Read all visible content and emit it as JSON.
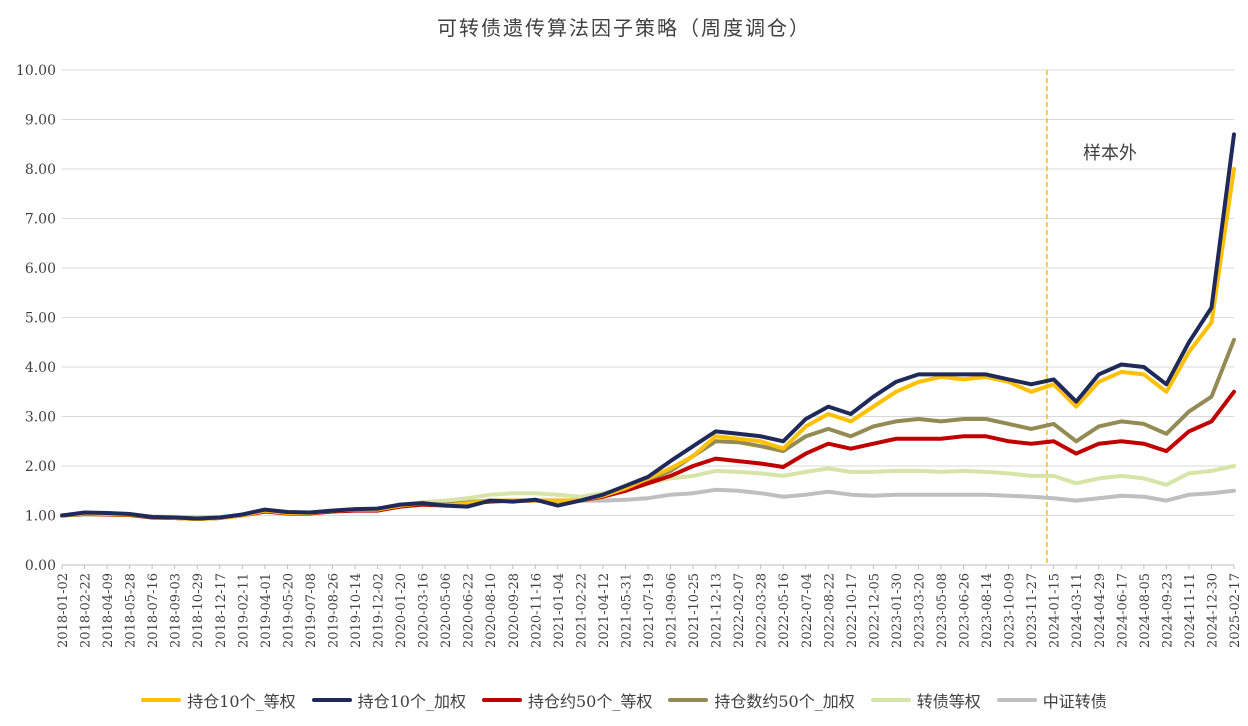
{
  "chart_data": {
    "type": "line",
    "title": "可转债遗传算法因子策略（周度调仓）",
    "ylim": [
      0,
      10
    ],
    "yticks": [
      "0.00",
      "1.00",
      "2.00",
      "3.00",
      "4.00",
      "5.00",
      "6.00",
      "7.00",
      "8.00",
      "9.00",
      "10.00"
    ],
    "grid": true,
    "legend_position": "bottom",
    "x_tick_labels": [
      "2018-01-02",
      "2018-02-22",
      "2018-04-09",
      "2018-05-28",
      "2018-07-16",
      "2018-09-03",
      "2018-10-29",
      "2018-12-17",
      "2019-02-11",
      "2019-04-01",
      "2019-05-20",
      "2019-07-08",
      "2019-08-26",
      "2019-10-14",
      "2019-12-02",
      "2020-01-20",
      "2020-03-16",
      "2020-05-06",
      "2020-06-22",
      "2020-08-10",
      "2020-09-28",
      "2020-11-16",
      "2021-01-04",
      "2021-02-22",
      "2021-04-12",
      "2021-05-31",
      "2021-07-19",
      "2021-09-06",
      "2021-10-25",
      "2021-12-13",
      "2022-02-07",
      "2022-03-28",
      "2022-05-16",
      "2022-07-04",
      "2022-08-22",
      "2022-10-17",
      "2022-12-05",
      "2023-01-30",
      "2023-03-20",
      "2023-05-08",
      "2023-06-26",
      "2023-08-14",
      "2023-10-09",
      "2023-11-27",
      "2024-01-15",
      "2024-03-11",
      "2024-04-29",
      "2024-06-17",
      "2024-08-05",
      "2024-09-23",
      "2024-11-11",
      "2024-12-30",
      "2025-02-17"
    ],
    "vline": {
      "x_index": 43.7,
      "label": "样本外",
      "color": "#FFC000"
    },
    "series": [
      {
        "name": "持仓10个_等权",
        "color": "#FFC000",
        "values": [
          1.0,
          1.04,
          1.03,
          1.02,
          0.97,
          0.95,
          0.93,
          0.95,
          1.0,
          1.1,
          1.05,
          1.05,
          1.1,
          1.12,
          1.12,
          1.2,
          1.25,
          1.2,
          1.25,
          1.3,
          1.3,
          1.3,
          1.3,
          1.3,
          1.4,
          1.55,
          1.75,
          1.95,
          2.2,
          2.6,
          2.55,
          2.5,
          2.35,
          2.8,
          3.05,
          2.9,
          3.2,
          3.5,
          3.7,
          3.8,
          3.75,
          3.8,
          3.7,
          3.5,
          3.65,
          3.2,
          3.7,
          3.9,
          3.85,
          3.5,
          4.3,
          4.9,
          8.0
        ]
      },
      {
        "name": "持仓10个_加权",
        "color": "#1F2A5A",
        "values": [
          1.0,
          1.06,
          1.05,
          1.03,
          0.97,
          0.96,
          0.94,
          0.96,
          1.02,
          1.12,
          1.07,
          1.06,
          1.1,
          1.13,
          1.14,
          1.22,
          1.25,
          1.2,
          1.18,
          1.3,
          1.28,
          1.32,
          1.2,
          1.3,
          1.42,
          1.6,
          1.78,
          2.1,
          2.4,
          2.7,
          2.65,
          2.6,
          2.5,
          2.95,
          3.2,
          3.05,
          3.4,
          3.7,
          3.85,
          3.85,
          3.85,
          3.85,
          3.75,
          3.65,
          3.75,
          3.3,
          3.85,
          4.05,
          4.0,
          3.65,
          4.5,
          5.2,
          8.7
        ]
      },
      {
        "name": "持仓约50个_等权",
        "color": "#C00000",
        "values": [
          1.0,
          1.03,
          1.02,
          1.01,
          0.96,
          0.95,
          0.93,
          0.95,
          1.0,
          1.08,
          1.04,
          1.04,
          1.08,
          1.1,
          1.1,
          1.18,
          1.22,
          1.2,
          1.25,
          1.28,
          1.3,
          1.3,
          1.3,
          1.3,
          1.38,
          1.5,
          1.65,
          1.8,
          2.0,
          2.15,
          2.1,
          2.05,
          1.98,
          2.25,
          2.45,
          2.35,
          2.45,
          2.55,
          2.55,
          2.55,
          2.6,
          2.6,
          2.5,
          2.45,
          2.5,
          2.25,
          2.45,
          2.5,
          2.45,
          2.3,
          2.7,
          2.9,
          3.5
        ]
      },
      {
        "name": "持仓数约50个_加权",
        "color": "#948A54",
        "values": [
          1.0,
          1.04,
          1.03,
          1.02,
          0.96,
          0.95,
          0.93,
          0.95,
          1.01,
          1.1,
          1.05,
          1.05,
          1.09,
          1.11,
          1.11,
          1.2,
          1.24,
          1.22,
          1.26,
          1.3,
          1.3,
          1.3,
          1.3,
          1.3,
          1.4,
          1.55,
          1.72,
          1.9,
          2.2,
          2.5,
          2.48,
          2.4,
          2.3,
          2.6,
          2.75,
          2.6,
          2.8,
          2.9,
          2.95,
          2.9,
          2.95,
          2.95,
          2.85,
          2.75,
          2.85,
          2.5,
          2.8,
          2.9,
          2.85,
          2.65,
          3.1,
          3.4,
          4.55
        ]
      },
      {
        "name": "转债等权",
        "color": "#D6E4A8",
        "values": [
          1.0,
          1.03,
          1.02,
          1.01,
          0.96,
          0.96,
          0.95,
          0.96,
          1.0,
          1.1,
          1.05,
          1.05,
          1.09,
          1.12,
          1.13,
          1.22,
          1.27,
          1.3,
          1.35,
          1.42,
          1.45,
          1.45,
          1.42,
          1.38,
          1.45,
          1.55,
          1.65,
          1.75,
          1.8,
          1.9,
          1.88,
          1.85,
          1.8,
          1.88,
          1.95,
          1.88,
          1.88,
          1.9,
          1.9,
          1.88,
          1.9,
          1.88,
          1.85,
          1.8,
          1.8,
          1.65,
          1.75,
          1.8,
          1.75,
          1.62,
          1.85,
          1.9,
          2.0
        ]
      },
      {
        "name": "中证转债",
        "color": "#BFBFBF",
        "values": [
          1.0,
          1.02,
          1.02,
          1.01,
          0.98,
          0.97,
          0.96,
          0.97,
          1.0,
          1.08,
          1.06,
          1.06,
          1.1,
          1.12,
          1.13,
          1.2,
          1.24,
          1.25,
          1.28,
          1.3,
          1.3,
          1.3,
          1.3,
          1.3,
          1.3,
          1.32,
          1.35,
          1.42,
          1.45,
          1.52,
          1.5,
          1.45,
          1.38,
          1.42,
          1.48,
          1.42,
          1.4,
          1.42,
          1.42,
          1.42,
          1.42,
          1.42,
          1.4,
          1.38,
          1.35,
          1.3,
          1.35,
          1.4,
          1.38,
          1.3,
          1.42,
          1.45,
          1.5
        ]
      }
    ]
  }
}
